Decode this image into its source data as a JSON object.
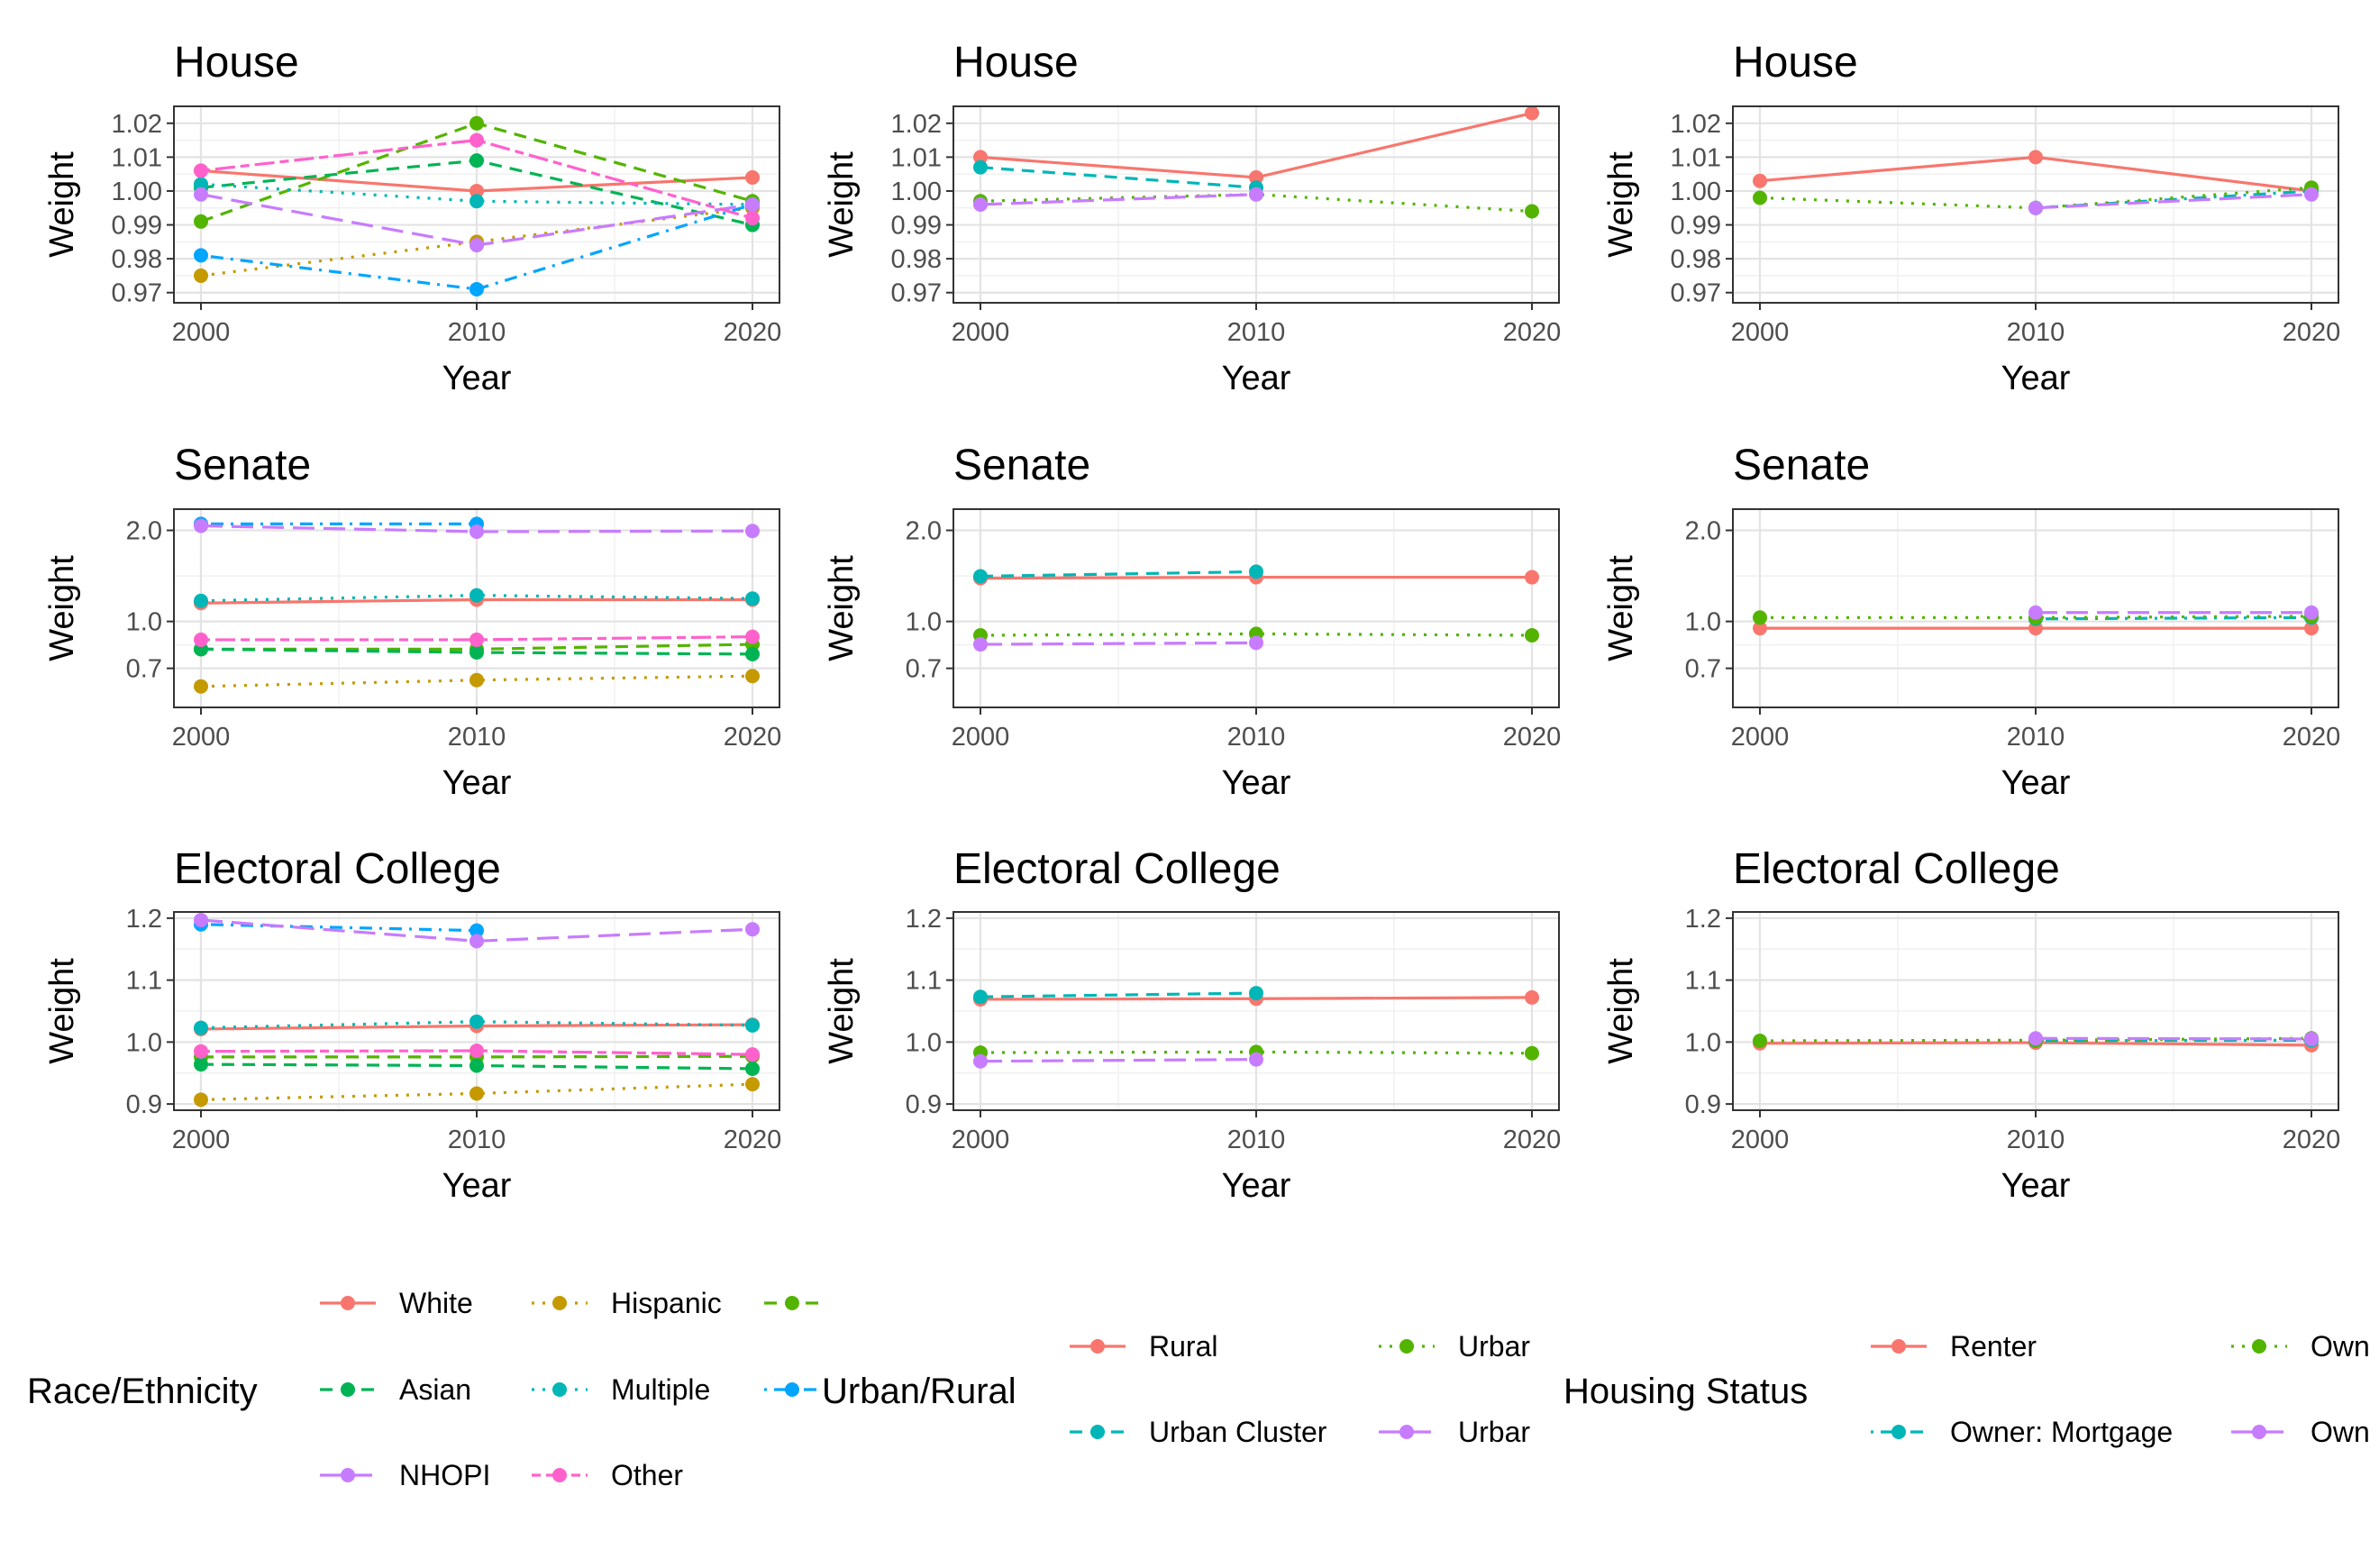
{
  "colors": {
    "white": "#F8766D",
    "black": "#C49A00",
    "hispanic": "#C49A00",
    "aian": "#53B400",
    "asian": "#00B454",
    "multiple": "#00B6B6",
    "api": "#00A5FF",
    "nhopi": "#C77CFF",
    "other": "#FF61CC",
    "rural": "#F8766D",
    "urban_cluster": "#00B6B6",
    "urban_green": "#53B400",
    "urban_purple": "#C77CFF",
    "renter": "#F8766D",
    "owner_mortgage": "#00B6B6",
    "owner_green": "#53B400",
    "owner_purple": "#C77CFF"
  },
  "legends": [
    {
      "title": "Race/Ethnicity",
      "entries": [
        {
          "label": "White",
          "color": "#F8766D",
          "dash": "solid"
        },
        {
          "label": "Hispanic",
          "color": "#C49A00",
          "dash": "dotted"
        },
        {
          "label": "",
          "color": "#53B400",
          "dash": "dashed"
        },
        {
          "label": "Asian",
          "color": "#00B454",
          "dash": "dashed"
        },
        {
          "label": "Multiple",
          "color": "#00B6B6",
          "dash": "dotted"
        },
        {
          "label": "",
          "color": "#00A5FF",
          "dash": "dotdash"
        },
        {
          "label": "NHOPI",
          "color": "#C77CFF",
          "dash": "longdash"
        },
        {
          "label": "Other",
          "color": "#FF61CC",
          "dash": "twodash"
        }
      ]
    },
    {
      "title": "Urban/Rural",
      "entries": [
        {
          "label": "Rural",
          "color": "#F8766D",
          "dash": "solid"
        },
        {
          "label": "Urbar",
          "color": "#53B400",
          "dash": "dotted"
        },
        {
          "label": "Urban Cluster",
          "color": "#00B6B6",
          "dash": "dashed"
        },
        {
          "label": "Urbar",
          "color": "#C77CFF",
          "dash": "longdash"
        }
      ]
    },
    {
      "title": "Housing Status",
      "entries": [
        {
          "label": "Renter",
          "color": "#F8766D",
          "dash": "solid"
        },
        {
          "label": "Own",
          "color": "#53B400",
          "dash": "dotted"
        },
        {
          "label": "Owner: Mortgage",
          "color": "#00B6B6",
          "dash": "dotdash"
        },
        {
          "label": "Own",
          "color": "#C77CFF",
          "dash": "longdash"
        }
      ]
    }
  ],
  "chart_data": [
    {
      "type": "line",
      "title": "House",
      "xlabel": "Year",
      "ylabel": "Weight",
      "x": [
        2000,
        2010,
        2020
      ],
      "xlim": [
        2000,
        2020
      ],
      "ylim": [
        0.967,
        1.025
      ],
      "log_y": false,
      "yticks": [
        0.97,
        0.98,
        0.99,
        1.0,
        1.01,
        1.02
      ],
      "ytick_labels": [
        "0.97",
        "0.98",
        "0.99",
        "1.00",
        "1.01",
        "1.02"
      ],
      "xtick_labels": [
        "2000",
        "2010",
        "2020"
      ],
      "grid": true,
      "series": [
        {
          "group": "white",
          "color": "#F8766D",
          "dash": "solid",
          "values": [
            1.006,
            1.0,
            1.004
          ]
        },
        {
          "group": "hispanic",
          "color": "#C49A00",
          "dash": "dotted",
          "values": [
            0.975,
            0.985,
            0.995
          ]
        },
        {
          "group": "aian",
          "color": "#53B400",
          "dash": "dashed",
          "values": [
            0.991,
            1.02,
            0.997
          ]
        },
        {
          "group": "asian",
          "color": "#00B454",
          "dash": "dashed",
          "values": [
            1.001,
            1.009,
            0.99
          ]
        },
        {
          "group": "multiple",
          "color": "#00B6B6",
          "dash": "dotted",
          "values": [
            1.002,
            0.997,
            0.996
          ]
        },
        {
          "group": "api",
          "color": "#00A5FF",
          "dash": "dotdash",
          "values": [
            0.981,
            0.971,
            0.996
          ]
        },
        {
          "group": "nhopi",
          "color": "#C77CFF",
          "dash": "longdash",
          "values": [
            0.999,
            0.984,
            0.996
          ]
        },
        {
          "group": "other",
          "color": "#FF61CC",
          "dash": "twodash",
          "values": [
            1.006,
            1.015,
            0.992
          ]
        }
      ]
    },
    {
      "type": "line",
      "title": "House",
      "xlabel": "Year",
      "ylabel": "Weight",
      "x": [
        2000,
        2010,
        2020
      ],
      "xlim": [
        2000,
        2020
      ],
      "ylim": [
        0.967,
        1.025
      ],
      "log_y": false,
      "yticks": [
        0.97,
        0.98,
        0.99,
        1.0,
        1.01,
        1.02
      ],
      "ytick_labels": [
        "0.97",
        "0.98",
        "0.99",
        "1.00",
        "1.01",
        "1.02"
      ],
      "xtick_labels": [
        "2000",
        "2010",
        "2020"
      ],
      "grid": true,
      "series": [
        {
          "group": "rural",
          "color": "#F8766D",
          "dash": "solid",
          "values": [
            1.01,
            1.004,
            1.023
          ]
        },
        {
          "group": "urban_cluster",
          "color": "#00B6B6",
          "dash": "dashed",
          "values": [
            1.007,
            1.001,
            null
          ]
        },
        {
          "group": "urban_green",
          "color": "#53B400",
          "dash": "dotted",
          "values": [
            0.997,
            0.999,
            0.994
          ]
        },
        {
          "group": "urban_purple",
          "color": "#C77CFF",
          "dash": "longdash",
          "values": [
            0.996,
            0.999,
            null
          ]
        }
      ]
    },
    {
      "type": "line",
      "title": "House",
      "xlabel": "Year",
      "ylabel": "Weight",
      "x": [
        2000,
        2010,
        2020
      ],
      "xlim": [
        2000,
        2020
      ],
      "ylim": [
        0.967,
        1.025
      ],
      "log_y": false,
      "yticks": [
        0.97,
        0.98,
        0.99,
        1.0,
        1.01,
        1.02
      ],
      "ytick_labels": [
        "0.97",
        "0.98",
        "0.99",
        "1.00",
        "1.01",
        "1.02"
      ],
      "xtick_labels": [
        "2000",
        "2010",
        "2020"
      ],
      "grid": true,
      "series": [
        {
          "group": "renter",
          "color": "#F8766D",
          "dash": "solid",
          "values": [
            1.003,
            1.01,
            1.0
          ]
        },
        {
          "group": "owner_mortgage",
          "color": "#00B6B6",
          "dash": "dotdash",
          "values": [
            null,
            0.995,
            1.0
          ]
        },
        {
          "group": "owner_green",
          "color": "#53B400",
          "dash": "dotted",
          "values": [
            0.998,
            0.995,
            1.001
          ]
        },
        {
          "group": "owner_purple",
          "color": "#C77CFF",
          "dash": "longdash",
          "values": [
            null,
            0.995,
            0.999
          ]
        }
      ]
    },
    {
      "type": "line",
      "title": "Senate",
      "xlabel": "Year",
      "ylabel": "Weight",
      "x": [
        2000,
        2010,
        2020
      ],
      "xlim": [
        2000,
        2020
      ],
      "ylim": [
        0.52,
        2.35
      ],
      "log_y": true,
      "yticks": [
        0.7,
        1.0,
        2.0
      ],
      "ytick_labels": [
        "0.7",
        "1.0",
        "2.0"
      ],
      "xtick_labels": [
        "2000",
        "2010",
        "2020"
      ],
      "grid": true,
      "series": [
        {
          "group": "white",
          "color": "#F8766D",
          "dash": "solid",
          "values": [
            1.15,
            1.18,
            1.18
          ]
        },
        {
          "group": "hispanic",
          "color": "#C49A00",
          "dash": "dotted",
          "values": [
            0.61,
            0.64,
            0.66
          ]
        },
        {
          "group": "aian",
          "color": "#53B400",
          "dash": "dashed",
          "values": [
            0.81,
            0.81,
            0.84
          ]
        },
        {
          "group": "asian",
          "color": "#00B454",
          "dash": "dashed",
          "values": [
            0.81,
            0.79,
            0.78
          ]
        },
        {
          "group": "multiple",
          "color": "#00B6B6",
          "dash": "dotted",
          "values": [
            1.17,
            1.22,
            1.19
          ]
        },
        {
          "group": "api",
          "color": "#00A5FF",
          "dash": "dotdash",
          "values": [
            2.1,
            2.1,
            null
          ]
        },
        {
          "group": "nhopi",
          "color": "#C77CFF",
          "dash": "longdash",
          "values": [
            2.07,
            1.98,
            1.99
          ]
        },
        {
          "group": "other",
          "color": "#FF61CC",
          "dash": "twodash",
          "values": [
            0.87,
            0.87,
            0.89
          ]
        }
      ]
    },
    {
      "type": "line",
      "title": "Senate",
      "xlabel": "Year",
      "ylabel": "Weight",
      "x": [
        2000,
        2010,
        2020
      ],
      "xlim": [
        2000,
        2020
      ],
      "ylim": [
        0.52,
        2.35
      ],
      "log_y": true,
      "yticks": [
        0.7,
        1.0,
        2.0
      ],
      "ytick_labels": [
        "0.7",
        "1.0",
        "2.0"
      ],
      "xtick_labels": [
        "2000",
        "2010",
        "2020"
      ],
      "grid": true,
      "series": [
        {
          "group": "rural",
          "color": "#F8766D",
          "dash": "solid",
          "values": [
            1.39,
            1.4,
            1.4
          ]
        },
        {
          "group": "urban_cluster",
          "color": "#00B6B6",
          "dash": "dashed",
          "values": [
            1.41,
            1.46,
            null
          ]
        },
        {
          "group": "urban_green",
          "color": "#53B400",
          "dash": "dotted",
          "values": [
            0.9,
            0.91,
            0.9
          ]
        },
        {
          "group": "urban_purple",
          "color": "#C77CFF",
          "dash": "longdash",
          "values": [
            0.84,
            0.85,
            null
          ]
        }
      ]
    },
    {
      "type": "line",
      "title": "Senate",
      "xlabel": "Year",
      "ylabel": "Weight",
      "x": [
        2000,
        2010,
        2020
      ],
      "xlim": [
        2000,
        2020
      ],
      "ylim": [
        0.52,
        2.35
      ],
      "log_y": true,
      "yticks": [
        0.7,
        1.0,
        2.0
      ],
      "ytick_labels": [
        "0.7",
        "1.0",
        "2.0"
      ],
      "xtick_labels": [
        "2000",
        "2010",
        "2020"
      ],
      "grid": true,
      "series": [
        {
          "group": "renter",
          "color": "#F8766D",
          "dash": "solid",
          "values": [
            0.95,
            0.95,
            0.95
          ]
        },
        {
          "group": "owner_mortgage",
          "color": "#00B6B6",
          "dash": "dotdash",
          "values": [
            null,
            1.02,
            1.03
          ]
        },
        {
          "group": "owner_green",
          "color": "#53B400",
          "dash": "dotted",
          "values": [
            1.03,
            1.03,
            1.04
          ]
        },
        {
          "group": "owner_purple",
          "color": "#C77CFF",
          "dash": "longdash",
          "values": [
            null,
            1.07,
            1.07
          ]
        }
      ]
    },
    {
      "type": "line",
      "title": "Electoral College",
      "xlabel": "Year",
      "ylabel": "Weight",
      "x": [
        2000,
        2010,
        2020
      ],
      "xlim": [
        2000,
        2020
      ],
      "ylim": [
        0.89,
        1.21
      ],
      "log_y": false,
      "yticks": [
        0.9,
        1.0,
        1.1,
        1.2
      ],
      "ytick_labels": [
        "0.9",
        "1.0",
        "1.1",
        "1.2"
      ],
      "xtick_labels": [
        "2000",
        "2010",
        "2020"
      ],
      "grid": true,
      "series": [
        {
          "group": "white",
          "color": "#F8766D",
          "dash": "solid",
          "values": [
            1.021,
            1.026,
            1.028
          ]
        },
        {
          "group": "hispanic",
          "color": "#C49A00",
          "dash": "dotted",
          "values": [
            0.907,
            0.917,
            0.932
          ]
        },
        {
          "group": "aian",
          "color": "#53B400",
          "dash": "dashed",
          "values": [
            0.976,
            0.976,
            0.977
          ]
        },
        {
          "group": "asian",
          "color": "#00B454",
          "dash": "dashed",
          "values": [
            0.964,
            0.962,
            0.957
          ]
        },
        {
          "group": "multiple",
          "color": "#00B6B6",
          "dash": "dotted",
          "values": [
            1.023,
            1.033,
            1.027
          ]
        },
        {
          "group": "api",
          "color": "#00A5FF",
          "dash": "dotdash",
          "values": [
            1.19,
            1.18,
            null
          ]
        },
        {
          "group": "nhopi",
          "color": "#C77CFF",
          "dash": "longdash",
          "values": [
            1.197,
            1.163,
            1.182
          ]
        },
        {
          "group": "other",
          "color": "#FF61CC",
          "dash": "twodash",
          "values": [
            0.985,
            0.986,
            0.98
          ]
        }
      ]
    },
    {
      "type": "line",
      "title": "Electoral College",
      "xlabel": "Year",
      "ylabel": "Weight",
      "x": [
        2000,
        2010,
        2020
      ],
      "xlim": [
        2000,
        2020
      ],
      "ylim": [
        0.89,
        1.21
      ],
      "log_y": false,
      "yticks": [
        0.9,
        1.0,
        1.1,
        1.2
      ],
      "ytick_labels": [
        "0.9",
        "1.0",
        "1.1",
        "1.2"
      ],
      "xtick_labels": [
        "2000",
        "2010",
        "2020"
      ],
      "grid": true,
      "series": [
        {
          "group": "rural",
          "color": "#F8766D",
          "dash": "solid",
          "values": [
            1.069,
            1.07,
            1.072
          ]
        },
        {
          "group": "urban_cluster",
          "color": "#00B6B6",
          "dash": "dashed",
          "values": [
            1.073,
            1.079,
            null
          ]
        },
        {
          "group": "urban_green",
          "color": "#53B400",
          "dash": "dotted",
          "values": [
            0.983,
            0.984,
            0.982
          ]
        },
        {
          "group": "urban_purple",
          "color": "#C77CFF",
          "dash": "longdash",
          "values": [
            0.969,
            0.972,
            null
          ]
        }
      ]
    },
    {
      "type": "line",
      "title": "Electoral College",
      "xlabel": "Year",
      "ylabel": "Weight",
      "x": [
        2000,
        2010,
        2020
      ],
      "xlim": [
        2000,
        2020
      ],
      "ylim": [
        0.89,
        1.21
      ],
      "log_y": false,
      "yticks": [
        0.9,
        1.0,
        1.1,
        1.2
      ],
      "ytick_labels": [
        "0.9",
        "1.0",
        "1.1",
        "1.2"
      ],
      "xtick_labels": [
        "2000",
        "2010",
        "2020"
      ],
      "grid": true,
      "series": [
        {
          "group": "renter",
          "color": "#F8766D",
          "dash": "solid",
          "values": [
            0.998,
            0.999,
            0.995
          ]
        },
        {
          "group": "owner_mortgage",
          "color": "#00B6B6",
          "dash": "dotdash",
          "values": [
            null,
            1.002,
            1.003
          ]
        },
        {
          "group": "owner_green",
          "color": "#53B400",
          "dash": "dotted",
          "values": [
            1.002,
            1.003,
            1.006
          ]
        },
        {
          "group": "owner_purple",
          "color": "#C77CFF",
          "dash": "longdash",
          "values": [
            null,
            1.006,
            1.005
          ]
        }
      ]
    }
  ]
}
